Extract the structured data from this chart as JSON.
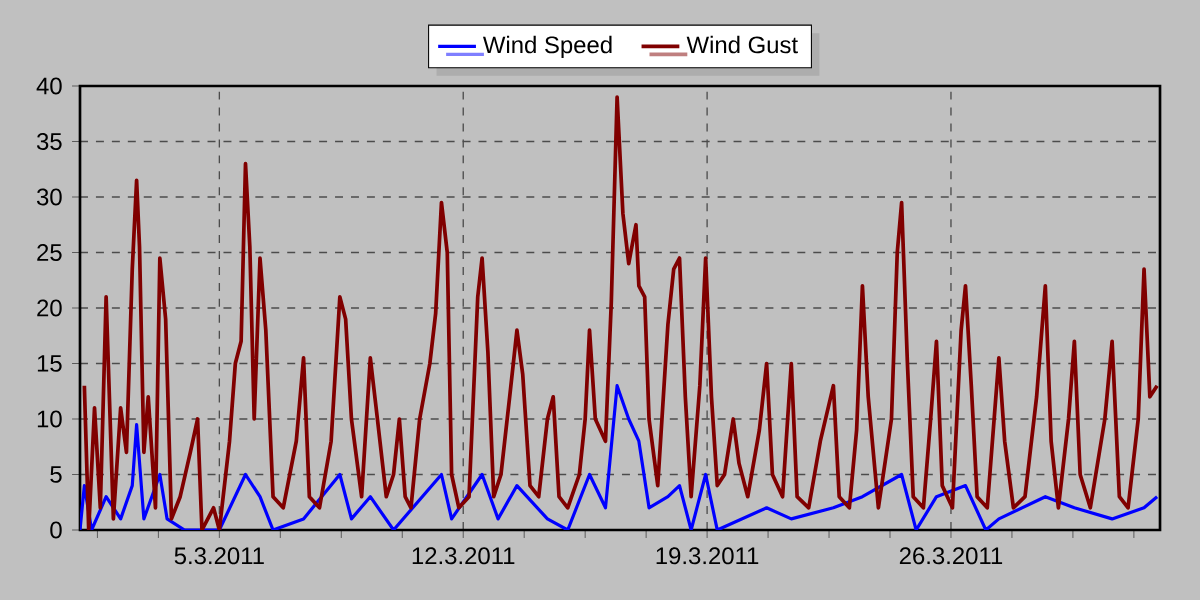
{
  "chart_data": {
    "type": "line",
    "grid": true,
    "legend": "top",
    "xlim": [
      "2011-03-01T00:00",
      "2011-04-01T00:00"
    ],
    "xticks": [
      {
        "value": "2011-03-01T12:00",
        "label": null
      },
      {
        "value": "2011-03-03T06:00",
        "label": null
      },
      {
        "value": "2011-03-05",
        "label": "5.3.2011"
      },
      {
        "value": "2011-03-06T18:00",
        "label": null
      },
      {
        "value": "2011-03-08T12:00",
        "label": null
      },
      {
        "value": "2011-03-10T06:00",
        "label": null
      },
      {
        "value": "2011-03-12",
        "label": "12.3.2011"
      },
      {
        "value": "2011-03-13T18:00",
        "label": null
      },
      {
        "value": "2011-03-15T12:00",
        "label": null
      },
      {
        "value": "2011-03-17T06:00",
        "label": null
      },
      {
        "value": "2011-03-19",
        "label": "19.3.2011"
      },
      {
        "value": "2011-03-20T18:00",
        "label": null
      },
      {
        "value": "2011-03-22T12:00",
        "label": null
      },
      {
        "value": "2011-03-24T06:00",
        "label": null
      },
      {
        "value": "2011-03-26",
        "label": "26.3.2011"
      },
      {
        "value": "2011-03-27T18:00",
        "label": null
      },
      {
        "value": "2011-03-29T12:00",
        "label": null
      },
      {
        "value": "2011-03-31T06:00",
        "label": null
      }
    ],
    "ylim": [
      0,
      40
    ],
    "yticks": [
      0,
      5,
      10,
      15,
      20,
      25,
      30,
      35,
      40
    ],
    "series": [
      {
        "name": "Wind Speed",
        "color": "#0000ff",
        "x": [
          "2011-03-01T00:00",
          "2011-03-01T03:00",
          "2011-03-01T08:00",
          "2011-03-01T18:00",
          "2011-03-02T04:00",
          "2011-03-02T12:00",
          "2011-03-02T15:00",
          "2011-03-02T20:00",
          "2011-03-03T07:00",
          "2011-03-03T12:00",
          "2011-03-04T00:00",
          "2011-03-05T00:00",
          "2011-03-05T18:00",
          "2011-03-06T04:00",
          "2011-03-06T13:00",
          "2011-03-07T10:00",
          "2011-03-08T11:00",
          "2011-03-08T19:00",
          "2011-03-09T08:00",
          "2011-03-10T00:00",
          "2011-03-11T09:00",
          "2011-03-11T16:00",
          "2011-03-12T13:00",
          "2011-03-13T00:00",
          "2011-03-13T13:00",
          "2011-03-14T10:00",
          "2011-03-15T00:00",
          "2011-03-15T15:00",
          "2011-03-16T02:00",
          "2011-03-16T10:00",
          "2011-03-16T18:00",
          "2011-03-17T01:00",
          "2011-03-17T08:00",
          "2011-03-17T21:00",
          "2011-03-18T05:00",
          "2011-03-18T13:00",
          "2011-03-18T23:00",
          "2011-03-19T07:00",
          "2011-03-20T17:00",
          "2011-03-21T10:00",
          "2011-03-22T15:00",
          "2011-03-23T11:00",
          "2011-03-24T14:00",
          "2011-03-25T00:00",
          "2011-03-25T14:00",
          "2011-03-26T10:00",
          "2011-03-27T00:00",
          "2011-03-27T09:00",
          "2011-03-28T17:00",
          "2011-03-29T13:00",
          "2011-03-30T15:00",
          "2011-03-31T13:00",
          "2011-03-31T22:00"
        ],
        "values": [
          0,
          4,
          0,
          3,
          1,
          4,
          9.5,
          1,
          5,
          1,
          0,
          0,
          5,
          3,
          0,
          1,
          5,
          1,
          3,
          0,
          5,
          1,
          5,
          1,
          4,
          1,
          0,
          5,
          2,
          13,
          10,
          8,
          2,
          3,
          4,
          0,
          5,
          0,
          2,
          1,
          2,
          3,
          5,
          0,
          3,
          4,
          0,
          1,
          3,
          2,
          1,
          2,
          3
        ]
      },
      {
        "name": "Wind Gust",
        "color": "#800000",
        "x": [
          "2011-03-01T03:00",
          "2011-03-01T06:00",
          "2011-03-01T10:00",
          "2011-03-01T14:00",
          "2011-03-01T18:00",
          "2011-03-01T23:00",
          "2011-03-02T04:00",
          "2011-03-02T08:00",
          "2011-03-02T12:00",
          "2011-03-02T15:00",
          "2011-03-02T17:00",
          "2011-03-02T20:00",
          "2011-03-02T23:00",
          "2011-03-03T04:00",
          "2011-03-03T07:00",
          "2011-03-03T11:00",
          "2011-03-03T15:00",
          "2011-03-03T21:00",
          "2011-03-04T04:00",
          "2011-03-04T09:00",
          "2011-03-04T12:00",
          "2011-03-04T20:00",
          "2011-03-05T00:00",
          "2011-03-05T07:00",
          "2011-03-05T11:00",
          "2011-03-05T15:00",
          "2011-03-05T18:00",
          "2011-03-05T21:00",
          "2011-03-06T00:00",
          "2011-03-06T04:00",
          "2011-03-06T08:00",
          "2011-03-06T13:00",
          "2011-03-06T20:00",
          "2011-03-07T05:00",
          "2011-03-07T10:00",
          "2011-03-07T14:00",
          "2011-03-07T21:00",
          "2011-03-08T05:00",
          "2011-03-08T11:00",
          "2011-03-08T15:00",
          "2011-03-08T19:00",
          "2011-03-09T02:00",
          "2011-03-09T08:00",
          "2011-03-09T12:00",
          "2011-03-09T19:00",
          "2011-03-10T00:00",
          "2011-03-10T04:00",
          "2011-03-10T08:00",
          "2011-03-10T12:00",
          "2011-03-10T18:00",
          "2011-03-11T01:00",
          "2011-03-11T05:00",
          "2011-03-11T09:00",
          "2011-03-11T13:00",
          "2011-03-11T16:00",
          "2011-03-11T21:00",
          "2011-03-12T04:00",
          "2011-03-12T10:00",
          "2011-03-12T13:00",
          "2011-03-12T17:00",
          "2011-03-12T21:00",
          "2011-03-13T02:00",
          "2011-03-13T08:00",
          "2011-03-13T13:00",
          "2011-03-13T17:00",
          "2011-03-13T22:00",
          "2011-03-14T04:00",
          "2011-03-14T10:00",
          "2011-03-14T14:00",
          "2011-03-14T18:00",
          "2011-03-15T00:00",
          "2011-03-15T08:00",
          "2011-03-15T12:00",
          "2011-03-15T15:00",
          "2011-03-15T19:00",
          "2011-03-16T02:00",
          "2011-03-16T06:00",
          "2011-03-16T10:00",
          "2011-03-16T14:00",
          "2011-03-16T18:00",
          "2011-03-16T23:00",
          "2011-03-17T01:00",
          "2011-03-17T05:00",
          "2011-03-17T08:00",
          "2011-03-17T14:00",
          "2011-03-17T21:00",
          "2011-03-18T01:00",
          "2011-03-18T05:00",
          "2011-03-18T09:00",
          "2011-03-18T13:00",
          "2011-03-18T19:00",
          "2011-03-18T23:00",
          "2011-03-19T03:00",
          "2011-03-19T07:00",
          "2011-03-19T12:00",
          "2011-03-19T18:00",
          "2011-03-19T22:00",
          "2011-03-20T04:00",
          "2011-03-20T12:00",
          "2011-03-20T17:00",
          "2011-03-20T21:00",
          "2011-03-21T04:00",
          "2011-03-21T10:00",
          "2011-03-21T14:00",
          "2011-03-21T22:00",
          "2011-03-22T06:00",
          "2011-03-22T15:00",
          "2011-03-22T19:00",
          "2011-03-23T02:00",
          "2011-03-23T07:00",
          "2011-03-23T11:00",
          "2011-03-23T15:00",
          "2011-03-23T22:00",
          "2011-03-24T07:00",
          "2011-03-24T11:00",
          "2011-03-24T14:00",
          "2011-03-24T18:00",
          "2011-03-24T22:00",
          "2011-03-25T05:00",
          "2011-03-25T10:00",
          "2011-03-25T14:00",
          "2011-03-25T18:00",
          "2011-03-26T01:00",
          "2011-03-26T07:00",
          "2011-03-26T10:00",
          "2011-03-26T14:00",
          "2011-03-26T18:00",
          "2011-03-27T01:00",
          "2011-03-27T09:00",
          "2011-03-27T13:00",
          "2011-03-27T19:00",
          "2011-03-28T03:00",
          "2011-03-28T11:00",
          "2011-03-28T17:00",
          "2011-03-28T21:00",
          "2011-03-29T02:00",
          "2011-03-29T09:00",
          "2011-03-29T13:00",
          "2011-03-29T17:00",
          "2011-03-30T00:00",
          "2011-03-30T10:00",
          "2011-03-30T15:00",
          "2011-03-30T20:00",
          "2011-03-31T02:00",
          "2011-03-31T09:00",
          "2011-03-31T13:00",
          "2011-03-31T17:00",
          "2011-03-31T22:00"
        ],
        "values": [
          13,
          0,
          11,
          2,
          21,
          1,
          11,
          7,
          23.5,
          31.5,
          25.5,
          7,
          12,
          2,
          24.5,
          19,
          1,
          3,
          7,
          10,
          0,
          2,
          0,
          8,
          15,
          17,
          33,
          25.5,
          10,
          24.5,
          18,
          3,
          2,
          8,
          15.5,
          3,
          2,
          8,
          21,
          19,
          10,
          3,
          15.5,
          11,
          3,
          5,
          10,
          3,
          2,
          10,
          15,
          19.5,
          29.5,
          25,
          5,
          2,
          3,
          21,
          24.5,
          16,
          3,
          5,
          12,
          18,
          14,
          4,
          3,
          10,
          12,
          3,
          2,
          5,
          10,
          18,
          10,
          8,
          20.5,
          39,
          28.5,
          24,
          27.5,
          22,
          21,
          10,
          4,
          18.5,
          23.5,
          24.5,
          12,
          3,
          13,
          24.5,
          12,
          4,
          5,
          10,
          6,
          3,
          9,
          15,
          5,
          3,
          15,
          3,
          2,
          8,
          13,
          3,
          2,
          9,
          22,
          12,
          2,
          10,
          25,
          29.5,
          15,
          3,
          2,
          10,
          17,
          4,
          2,
          18,
          22,
          13,
          3,
          2,
          15.5,
          8,
          2,
          3,
          12,
          22,
          8,
          2,
          10,
          17,
          5,
          2,
          10,
          17,
          3,
          2,
          10,
          23.5,
          12,
          13
        ]
      }
    ]
  }
}
